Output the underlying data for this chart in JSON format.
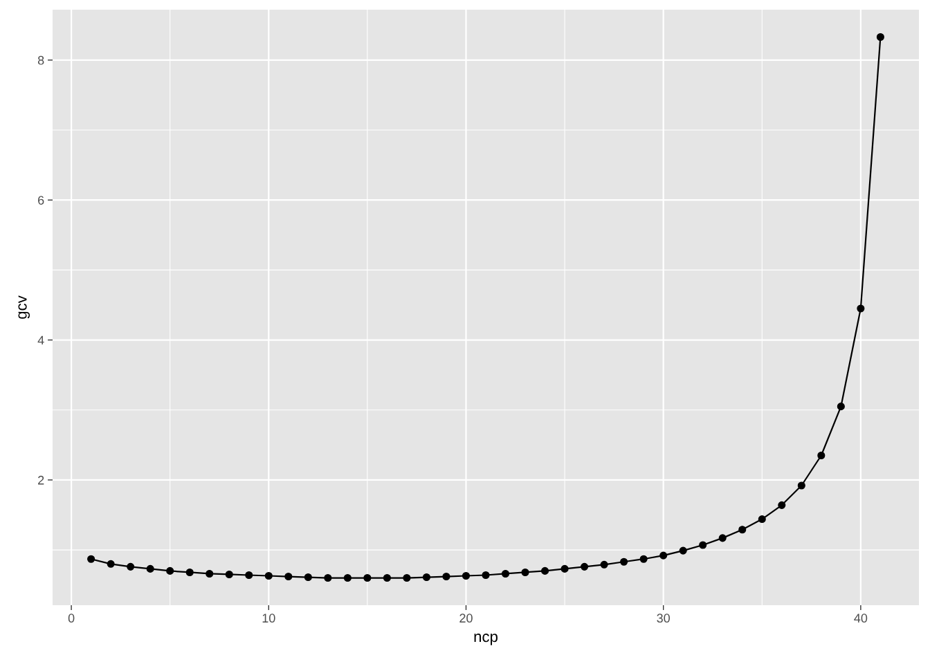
{
  "chart_data": {
    "type": "line",
    "xlabel": "ncp",
    "ylabel": "gcv",
    "x": [
      1,
      2,
      3,
      4,
      5,
      6,
      7,
      8,
      9,
      10,
      11,
      12,
      13,
      14,
      15,
      16,
      17,
      18,
      19,
      20,
      21,
      22,
      23,
      24,
      25,
      26,
      27,
      28,
      29,
      30,
      31,
      32,
      33,
      34,
      35,
      36,
      37,
      38,
      39,
      40,
      41
    ],
    "series": [
      {
        "color": "#000000",
        "values": [
          0.87,
          0.8,
          0.76,
          0.73,
          0.7,
          0.68,
          0.66,
          0.65,
          0.64,
          0.63,
          0.62,
          0.61,
          0.6,
          0.6,
          0.6,
          0.6,
          0.6,
          0.61,
          0.62,
          0.63,
          0.64,
          0.66,
          0.68,
          0.7,
          0.73,
          0.76,
          0.79,
          0.83,
          0.87,
          0.92,
          0.99,
          1.07,
          1.17,
          1.29,
          1.44,
          1.64,
          1.92,
          2.35,
          3.05,
          4.45,
          8.33
        ]
      }
    ],
    "xlim": [
      -0.95,
      42.95
    ],
    "ylim": [
      0.21,
      8.72
    ],
    "xticks": [
      0,
      10,
      20,
      30,
      40
    ],
    "yticks": [
      2,
      4,
      6,
      8
    ],
    "grid": true,
    "marker": "circle",
    "line_style": "solid"
  }
}
